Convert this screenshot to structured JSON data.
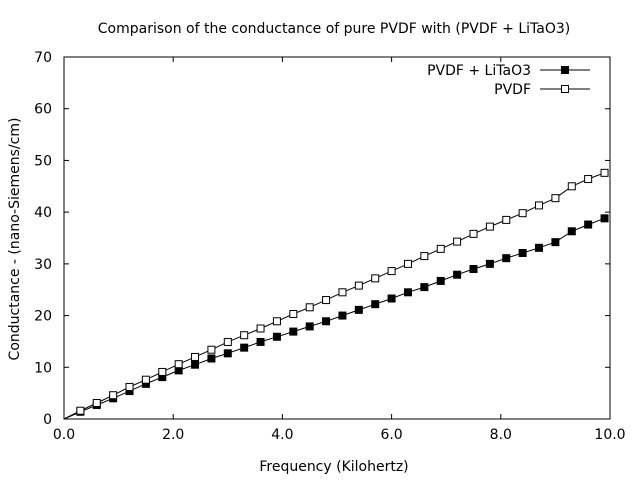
{
  "chart_data": {
    "type": "line",
    "title": "Comparison of the conductance of pure PVDF with (PVDF + LiTaO3)",
    "xlabel": "Frequency (Kilohertz)",
    "ylabel": "Conductance - (nano-Siemens/cm)",
    "xlim": [
      0,
      10
    ],
    "ylim": [
      0,
      70
    ],
    "xticks": [
      0,
      2,
      4,
      6,
      8,
      10
    ],
    "xtick_labels": [
      "0.0",
      "2.0",
      "4.0",
      "6.0",
      "8.0",
      "10.0"
    ],
    "yticks": [
      0,
      10,
      20,
      30,
      40,
      50,
      60,
      70
    ],
    "ytick_labels": [
      "0",
      "10",
      "20",
      "30",
      "40",
      "50",
      "60",
      "70"
    ],
    "grid": false,
    "legend_position": "top-right",
    "x": [
      0,
      0.3,
      0.6,
      0.9,
      1.2,
      1.5,
      1.8,
      2.1,
      2.4,
      2.7,
      3.0,
      3.3,
      3.6,
      3.9,
      4.2,
      4.5,
      4.8,
      5.1,
      5.4,
      5.7,
      6.0,
      6.3,
      6.6,
      6.9,
      7.2,
      7.5,
      7.8,
      8.1,
      8.4,
      8.7,
      9.0,
      9.3,
      9.6,
      9.9
    ],
    "series": [
      {
        "name": "PVDF + LiTaO3",
        "marker": "filled-square",
        "color": "#000000",
        "values": [
          0.0,
          1.4,
          2.7,
          4.0,
          5.4,
          6.8,
          8.1,
          9.4,
          10.5,
          11.7,
          12.7,
          13.8,
          14.9,
          15.9,
          16.9,
          17.9,
          18.9,
          20.0,
          21.1,
          22.2,
          23.3,
          24.5,
          25.5,
          26.7,
          27.9,
          29.0,
          30.0,
          31.1,
          32.1,
          33.1,
          34.2,
          36.3,
          37.6,
          38.8
        ]
      },
      {
        "name": "PVDF",
        "marker": "open-square",
        "color": "#000000",
        "values": [
          0.0,
          1.6,
          3.1,
          4.6,
          6.2,
          7.6,
          9.1,
          10.6,
          12.0,
          13.4,
          14.9,
          16.2,
          17.5,
          18.9,
          20.3,
          21.6,
          23.0,
          24.5,
          25.8,
          27.2,
          28.6,
          30.0,
          31.5,
          32.9,
          34.3,
          35.8,
          37.2,
          38.5,
          39.8,
          41.3,
          42.7,
          45.0,
          46.4,
          47.6
        ]
      }
    ]
  }
}
